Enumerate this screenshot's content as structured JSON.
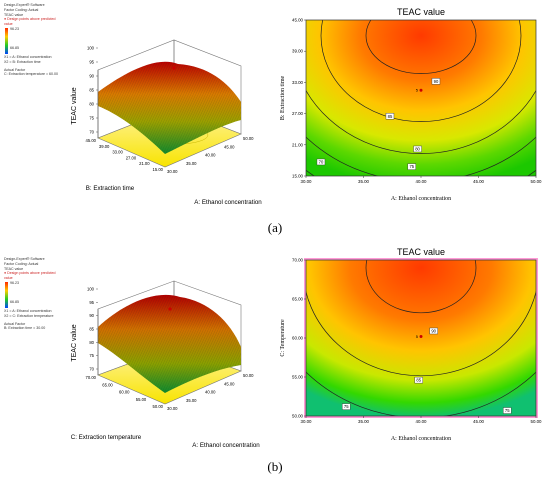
{
  "panels": [
    {
      "caption": "(a)",
      "legend": {
        "lines1": [
          "Design-Expert® Software",
          "Factor Coding: Actual",
          "TEAC value"
        ],
        "design_points": "● Design points above predicted value",
        "max_label": "96.23",
        "min_label": "66.85",
        "axis_lines": [
          "X1 = A: Ethanol concentration",
          "X2 = B: Extraction time"
        ],
        "actual_factor": [
          "Actual Factor",
          "C: Extraction temperature = 60.00"
        ]
      },
      "surface": {
        "zlabel": "TEAC value",
        "xlabel": "A: Ethanol concentration",
        "ylabel": "B: Extraction time",
        "z_ticks": [
          "100",
          "95",
          "90",
          "85",
          "80",
          "75",
          "70"
        ],
        "x_ticks": [
          "30.00",
          "35.00",
          "40.00",
          "45.00",
          "50.00"
        ],
        "y_ticks": [
          "45.00",
          "39.00",
          "33.00",
          "27.00",
          "21.00",
          "15.00"
        ]
      }
    },
    {
      "caption": "(b)",
      "legend": {
        "lines1": [
          "Design-Expert® Software",
          "Factor Coding: Actual",
          "TEAC value"
        ],
        "design_points": "● Design points above predicted value",
        "max_label": "96.23",
        "min_label": "66.85",
        "axis_lines": [
          "X1 = A: Ethanol concentration",
          "X2 = C: Extraction temperature"
        ],
        "actual_factor": [
          "Actual Factor",
          "B: Extraction time = 30.00"
        ]
      },
      "surface": {
        "zlabel": "TEAC value",
        "xlabel": "A: Ethanol concentration",
        "ylabel": "C: Extraction temperature",
        "z_ticks": [
          "100",
          "95",
          "90",
          "85",
          "80",
          "75",
          "70"
        ],
        "x_ticks": [
          "30.00",
          "35.00",
          "40.00",
          "45.00",
          "50.00"
        ],
        "y_ticks": [
          "70.00",
          "65.00",
          "60.00",
          "55.00",
          "50.00"
        ]
      }
    }
  ],
  "chart_data": [
    {
      "type": "contour",
      "title": "TEAC value",
      "xlabel": "A: Ethanol concentration",
      "ylabel": "B: Extraction time",
      "xlim": [
        30,
        50
      ],
      "ylim": [
        15,
        45
      ],
      "x_ticks": [
        "30.00",
        "35.00",
        "40.00",
        "45.00",
        "50.00"
      ],
      "y_ticks": [
        "15.00",
        "21.00",
        "27.00",
        "33.00",
        "39.00",
        "45.00"
      ],
      "optimum": {
        "x": 40,
        "y": 42
      },
      "contour_levels": [
        {
          "level": 70,
          "label": "70",
          "label_at": [
            31.3,
            17.7
          ]
        },
        {
          "level": 75,
          "label": "75",
          "label_at": [
            39.2,
            16.8
          ]
        },
        {
          "level": 80,
          "label": "80",
          "label_at": [
            39.7,
            20.2
          ]
        },
        {
          "level": 85,
          "label": "85",
          "label_at": [
            37.3,
            26.5
          ]
        },
        {
          "level": 90,
          "label": "90",
          "label_at": [
            41.3,
            33.2
          ]
        }
      ],
      "design_point": {
        "x": 40,
        "y": 31.5,
        "label": "5"
      }
    },
    {
      "type": "contour",
      "title": "TEAC value",
      "xlabel": "A: Ethanol concentration",
      "ylabel": "C: Temperature",
      "xlim": [
        30,
        50
      ],
      "ylim": [
        50,
        70
      ],
      "x_ticks": [
        "30.00",
        "35.00",
        "40.00",
        "45.00",
        "50.00"
      ],
      "y_ticks": [
        "50.00",
        "55.00",
        "60.00",
        "65.00",
        "70.00"
      ],
      "optimum": {
        "x": 40,
        "y": 69
      },
      "contour_levels": [
        {
          "level": 75,
          "label": "75",
          "label_at": [
            33.5,
            51.2
          ]
        },
        {
          "level": 75,
          "label": "75",
          "label_at": [
            47.5,
            50.7
          ]
        },
        {
          "level": 85,
          "label": "85",
          "label_at": [
            39.8,
            54.6
          ]
        },
        {
          "level": 90,
          "label": "90",
          "label_at": [
            41.1,
            60.9
          ]
        }
      ],
      "design_point": {
        "x": 40,
        "y": 60.2,
        "label": "5"
      }
    }
  ]
}
